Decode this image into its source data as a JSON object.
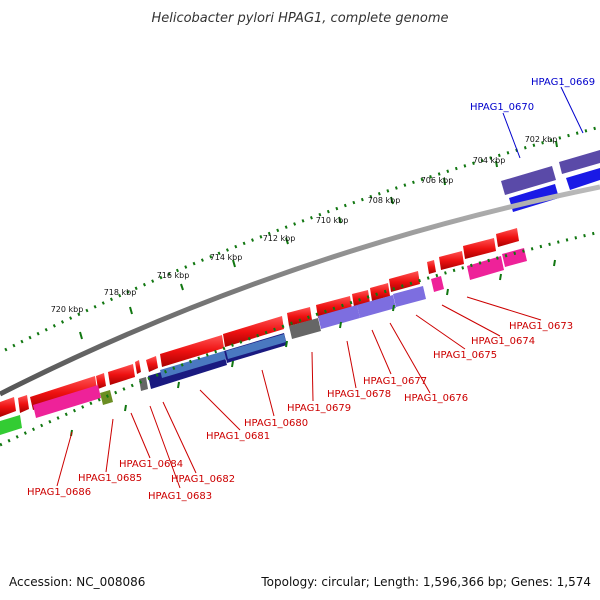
{
  "header": {
    "title": "Helicobacter pylori HPAG1, complete genome"
  },
  "footer": {
    "accession": "Accession: NC_008086",
    "summary": "Topology: circular; Length: 1,596,366 bp; Genes: 1,574"
  },
  "ticks": [
    {
      "label": "702 kbp"
    },
    {
      "label": "704 kbp"
    },
    {
      "label": "706 kbp"
    },
    {
      "label": "708 kbp"
    },
    {
      "label": "710 kbp"
    },
    {
      "label": "712 kbp"
    },
    {
      "label": "714 kbp"
    },
    {
      "label": "716 kbp"
    },
    {
      "label": "718 kbp"
    },
    {
      "label": "720 kbp"
    }
  ],
  "genes": [
    {
      "id": "HPAG1_0669",
      "color": "#0000cc"
    },
    {
      "id": "HPAG1_0670",
      "color": "#0000cc"
    },
    {
      "id": "HPAG1_0673",
      "color": "#cc0000"
    },
    {
      "id": "HPAG1_0674",
      "color": "#cc0000"
    },
    {
      "id": "HPAG1_0675",
      "color": "#cc0000"
    },
    {
      "id": "HPAG1_0676",
      "color": "#cc0000"
    },
    {
      "id": "HPAG1_0677",
      "color": "#cc0000"
    },
    {
      "id": "HPAG1_0678",
      "color": "#cc0000"
    },
    {
      "id": "HPAG1_0679",
      "color": "#cc0000"
    },
    {
      "id": "HPAG1_0680",
      "color": "#cc0000"
    },
    {
      "id": "HPAG1_0681",
      "color": "#cc0000"
    },
    {
      "id": "HPAG1_0682",
      "color": "#cc0000"
    },
    {
      "id": "HPAG1_0683",
      "color": "#cc0000"
    },
    {
      "id": "HPAG1_0684",
      "color": "#cc0000"
    },
    {
      "id": "HPAG1_0685",
      "color": "#cc0000"
    },
    {
      "id": "HPAG1_0686",
      "color": "#cc0000"
    }
  ],
  "colors": {
    "cds": "#ee1111",
    "cog_blue": "#1a1ae6",
    "cog_navy": "#1a1a80",
    "cog_purple": "#5a4aa8",
    "cog_lavender": "#7d6ee0",
    "cog_pink": "#ee2299",
    "cog_green": "#33cc33",
    "cog_olive": "#6b8e23",
    "cog_gray": "#666666",
    "backbone": "#808080",
    "tick": "#117711"
  }
}
